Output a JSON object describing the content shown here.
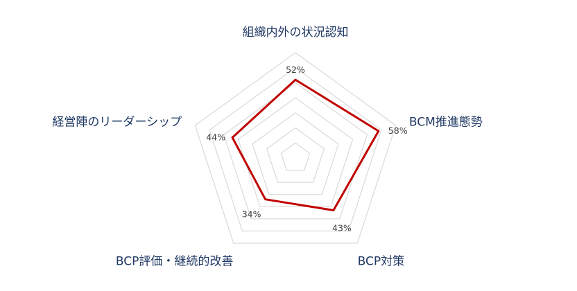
{
  "chart_data": {
    "type": "radar",
    "categories": [
      "組織内外の状況認知",
      "BCM推進態勢",
      "BCP対策",
      "BCP評価・継続的改善",
      "経営陣のリーダーシップ"
    ],
    "series": [
      {
        "values": [
          52,
          58,
          43,
          34,
          44
        ],
        "color": "#c00000"
      }
    ],
    "value_labels": [
      "52%",
      "58%",
      "43%",
      "34%",
      "44%"
    ],
    "rlim": [
      0,
      70
    ],
    "rings": 7,
    "grid": true,
    "grid_color": "#d9d9d9",
    "label_color": "#1f3864"
  }
}
